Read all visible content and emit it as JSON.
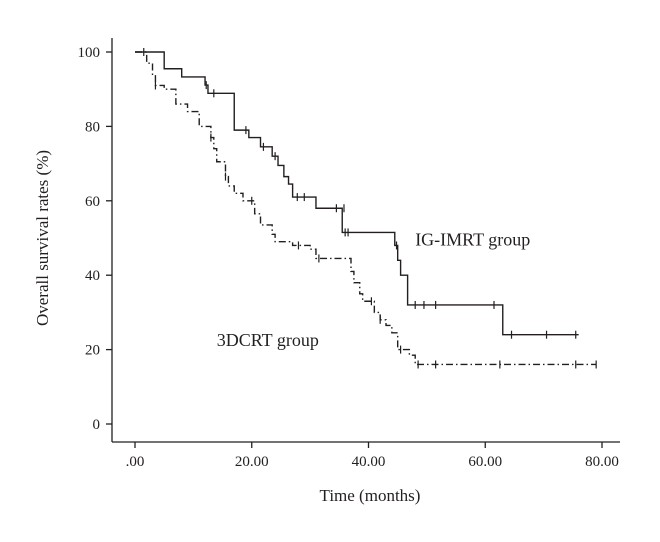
{
  "chart_data": {
    "type": "line",
    "subtype": "kaplan-meier-step",
    "xlabel": "Time (months)",
    "ylabel": "Overall survival rates (%)",
    "xlim": [
      0,
      80
    ],
    "ylim": [
      0,
      100
    ],
    "xticks": [
      0,
      20,
      40,
      60,
      80
    ],
    "xtick_labels": [
      ".00",
      "20.00",
      "40.00",
      "60.00",
      "80.00"
    ],
    "yticks": [
      0,
      20,
      40,
      60,
      80,
      100
    ],
    "ytick_labels": [
      "0",
      "20",
      "40",
      "60",
      "80",
      "100"
    ],
    "grid": false,
    "legend": "none",
    "annotations": [
      {
        "text": "IG-IMRT group",
        "x": 48,
        "y": 48
      },
      {
        "text": "3DCRT group",
        "x": 14,
        "y": 21
      }
    ],
    "series": [
      {
        "name": "IG-IMRT group",
        "line_style": "solid",
        "steps": [
          [
            0,
            100
          ],
          [
            5,
            95.5
          ],
          [
            8,
            93.3
          ],
          [
            12,
            91.1
          ],
          [
            12.5,
            88.9
          ],
          [
            17,
            79
          ],
          [
            19.5,
            77
          ],
          [
            21.5,
            74.5
          ],
          [
            23.5,
            72
          ],
          [
            24.5,
            69.5
          ],
          [
            25.5,
            66.5
          ],
          [
            26.3,
            64.5
          ],
          [
            27,
            61
          ],
          [
            31,
            58
          ],
          [
            35.5,
            51.5
          ],
          [
            44.5,
            48
          ],
          [
            45,
            44
          ],
          [
            45.5,
            40
          ],
          [
            46.7,
            32
          ],
          [
            63,
            24
          ]
        ],
        "end_x": 76,
        "censored": [
          [
            1.5,
            100
          ],
          [
            12.2,
            91.1
          ],
          [
            13.5,
            88.9
          ],
          [
            19,
            79
          ],
          [
            22,
            74.5
          ],
          [
            24,
            72
          ],
          [
            27.8,
            61
          ],
          [
            29,
            61
          ],
          [
            34.5,
            58
          ],
          [
            35.8,
            58
          ],
          [
            36,
            51.5
          ],
          [
            36.5,
            51.5
          ],
          [
            44.8,
            48
          ],
          [
            48,
            32
          ],
          [
            49.5,
            32
          ],
          [
            51.5,
            32
          ],
          [
            61.5,
            32
          ],
          [
            64.5,
            24
          ],
          [
            70.5,
            24
          ],
          [
            75.5,
            24
          ]
        ]
      },
      {
        "name": "3DCRT group",
        "line_style": "dash-dot",
        "steps": [
          [
            0,
            100
          ],
          [
            2,
            97
          ],
          [
            3,
            94
          ],
          [
            3.5,
            91
          ],
          [
            5,
            90
          ],
          [
            7,
            86
          ],
          [
            9,
            84
          ],
          [
            11,
            80
          ],
          [
            13,
            77
          ],
          [
            13.5,
            74
          ],
          [
            14,
            70.5
          ],
          [
            15.5,
            66.5
          ],
          [
            16,
            64
          ],
          [
            17,
            62
          ],
          [
            18.5,
            60
          ],
          [
            20.5,
            56.5
          ],
          [
            21.5,
            53.5
          ],
          [
            23.5,
            51
          ],
          [
            24,
            49
          ],
          [
            27,
            48
          ],
          [
            30,
            47
          ],
          [
            31,
            44.5
          ],
          [
            37,
            41
          ],
          [
            37.5,
            38
          ],
          [
            38.5,
            35
          ],
          [
            39,
            33
          ],
          [
            41,
            30
          ],
          [
            42,
            28
          ],
          [
            43,
            26.5
          ],
          [
            44,
            24.5
          ],
          [
            45,
            20
          ],
          [
            47,
            18.5
          ],
          [
            48,
            16
          ]
        ],
        "end_x": 79,
        "censored": [
          [
            3.5,
            91
          ],
          [
            13,
            77
          ],
          [
            15.5,
            66.5
          ],
          [
            20,
            60
          ],
          [
            28,
            48
          ],
          [
            31.5,
            44.5
          ],
          [
            40.5,
            33
          ],
          [
            42,
            28
          ],
          [
            45.5,
            20
          ],
          [
            48.5,
            16
          ],
          [
            51.5,
            16
          ],
          [
            62.5,
            16
          ],
          [
            75.5,
            16
          ],
          [
            79,
            16
          ]
        ]
      }
    ]
  }
}
